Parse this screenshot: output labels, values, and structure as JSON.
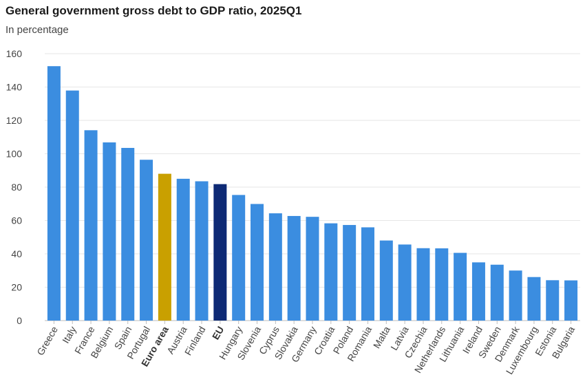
{
  "chart_data": {
    "type": "bar",
    "title": "General government gross debt to GDP ratio, 2025Q1",
    "subtitle": "In percentage",
    "xlabel": "",
    "ylabel": "",
    "ylim": [
      0,
      160
    ],
    "yticks": [
      0,
      20,
      40,
      60,
      80,
      100,
      120,
      140,
      160
    ],
    "grid": true,
    "categories": [
      "Greece",
      "Italy",
      "France",
      "Belgium",
      "Spain",
      "Portugal",
      "Euro area",
      "Austria",
      "Finland",
      "EU",
      "Hungary",
      "Slovenia",
      "Cyprus",
      "Slovakia",
      "Germany",
      "Croatia",
      "Poland",
      "Romania",
      "Malta",
      "Latvia",
      "Czechia",
      "Netherlands",
      "Lithuania",
      "Ireland",
      "Sweden",
      "Denmark",
      "Luxembourg",
      "Estonia",
      "Bulgaria"
    ],
    "values": [
      152.5,
      137.9,
      114.1,
      106.8,
      103.5,
      96.4,
      88.0,
      85.0,
      83.5,
      81.8,
      75.3,
      69.9,
      64.3,
      62.7,
      62.2,
      58.3,
      57.3,
      55.9,
      48.0,
      45.6,
      43.4,
      43.3,
      40.6,
      34.9,
      33.5,
      30.0,
      26.1,
      24.2,
      24.1
    ],
    "highlight": {
      "Euro area": "#c9a000",
      "EU": "#0e2a75"
    },
    "bold_labels": [
      "Euro area",
      "EU"
    ],
    "bar_color": "#3b8de0"
  }
}
